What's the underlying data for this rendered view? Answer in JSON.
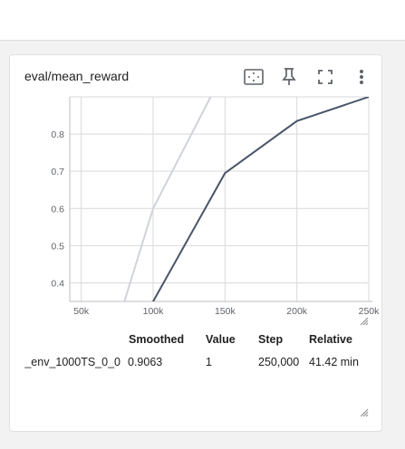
{
  "card": {
    "title": "eval/mean_reward",
    "toolbar": {
      "fit_icon": "fit-to-data-icon",
      "pin_icon": "pin-icon",
      "fullscreen_icon": "fullscreen-icon",
      "more_icon": "more-vert-icon"
    }
  },
  "table": {
    "headers": {
      "smoothed": "Smoothed",
      "value": "Value",
      "step": "Step",
      "relative": "Relative"
    },
    "row": {
      "run": "l_env_1000TS_0_0",
      "smoothed": "0.9063",
      "value": "1",
      "step": "250,000",
      "relative": "41.42 min"
    }
  },
  "colors": {
    "smoothed_line": "#4a5568",
    "raw_line": "#d0d3da",
    "grid": "#d9d9d9"
  },
  "chart_data": {
    "type": "line",
    "x_ticks": [
      "50k",
      "100k",
      "150k",
      "200k",
      "250k"
    ],
    "y_ticks": [
      "0.4",
      "0.5",
      "0.6",
      "0.7",
      "0.8"
    ],
    "xlim": [
      42000,
      250000
    ],
    "ylim": [
      0.35,
      0.9
    ],
    "series": [
      {
        "role": "raw",
        "x": [
          80000,
          100000,
          140000
        ],
        "y": [
          0.35,
          0.6,
          0.9
        ]
      },
      {
        "role": "smoothed",
        "x": [
          100000,
          150000,
          200000,
          250000
        ],
        "y": [
          0.35,
          0.695,
          0.835,
          0.9
        ]
      }
    ]
  }
}
